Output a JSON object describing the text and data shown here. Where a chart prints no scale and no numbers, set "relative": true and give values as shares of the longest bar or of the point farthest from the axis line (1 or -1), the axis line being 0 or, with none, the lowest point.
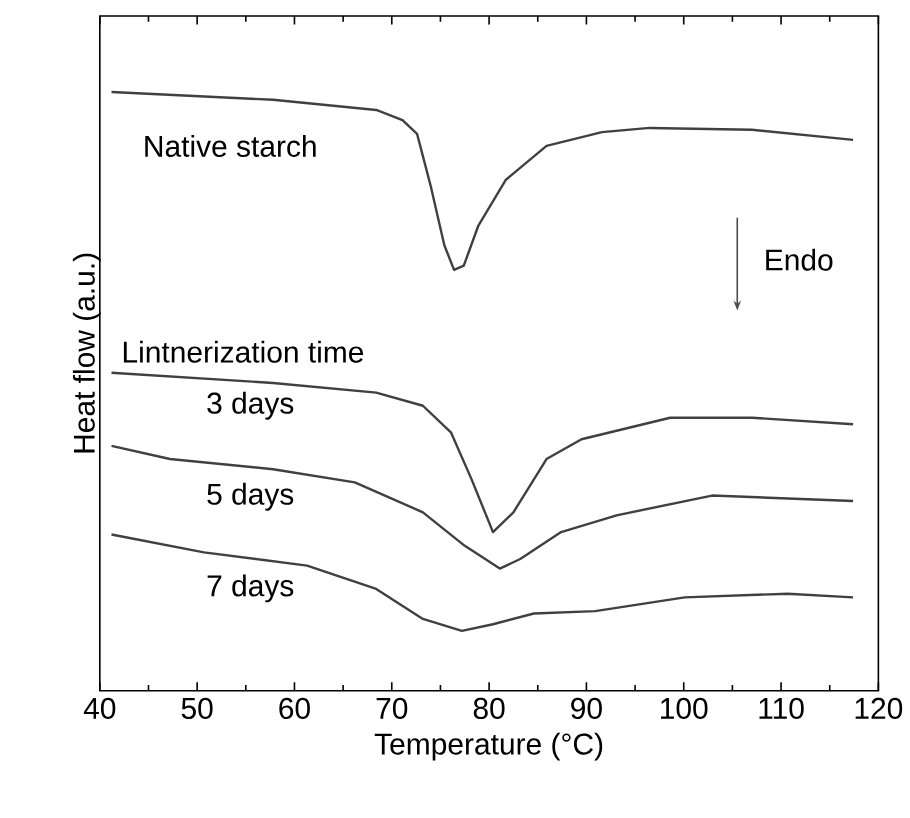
{
  "chart_data": {
    "type": "line",
    "relative": true,
    "xlabel": "Temperature (°C)",
    "ylabel": "Heat flow (a.u.)",
    "xlim": [
      40,
      120
    ],
    "xticks": [
      40,
      50,
      60,
      70,
      80,
      90,
      100,
      110,
      120
    ],
    "line_style": "solid",
    "marker": "none",
    "legend": false,
    "grid": false,
    "annotations": [
      "Lintnerization time",
      "Endo"
    ],
    "series": [
      {
        "name": "Native starch",
        "color": "#404040",
        "x": [
          41.2,
          57.8,
          68.4,
          71.1,
          72.6,
          74.0,
          75.4,
          76.4,
          77.4,
          78.9,
          81.7,
          85.9,
          91.6,
          96.5,
          107,
          117.4
        ],
        "values": [
          1.0,
          0.987,
          0.97,
          0.953,
          0.93,
          0.843,
          0.744,
          0.703,
          0.71,
          0.777,
          0.853,
          0.91,
          0.933,
          0.94,
          0.937,
          0.92
        ]
      },
      {
        "name": "3 days",
        "color": "#404040",
        "x": [
          41.2,
          57.8,
          68.4,
          73.2,
          76.1,
          78.2,
          80.4,
          82.5,
          85.9,
          89.5,
          98.6,
          107,
          117.4
        ],
        "values": [
          0.531,
          0.514,
          0.498,
          0.476,
          0.431,
          0.353,
          0.265,
          0.298,
          0.387,
          0.42,
          0.456,
          0.456,
          0.445
        ]
      },
      {
        "name": "5 days",
        "color": "#404040",
        "x": [
          41.2,
          47.2,
          57.8,
          66.2,
          73.2,
          77.5,
          81.1,
          83.2,
          87.4,
          93.1,
          102.9,
          117.4
        ],
        "values": [
          0.409,
          0.387,
          0.37,
          0.348,
          0.298,
          0.242,
          0.204,
          0.22,
          0.265,
          0.293,
          0.326,
          0.317
        ]
      },
      {
        "name": "7 days",
        "color": "#404040",
        "x": [
          41.2,
          50.7,
          61.3,
          68.4,
          73.2,
          77.2,
          80.4,
          84.6,
          90.9,
          100.1,
          110.7,
          117.4
        ],
        "values": [
          0.261,
          0.231,
          0.209,
          0.17,
          0.12,
          0.1,
          0.111,
          0.129,
          0.133,
          0.156,
          0.162,
          0.156
        ]
      }
    ]
  }
}
